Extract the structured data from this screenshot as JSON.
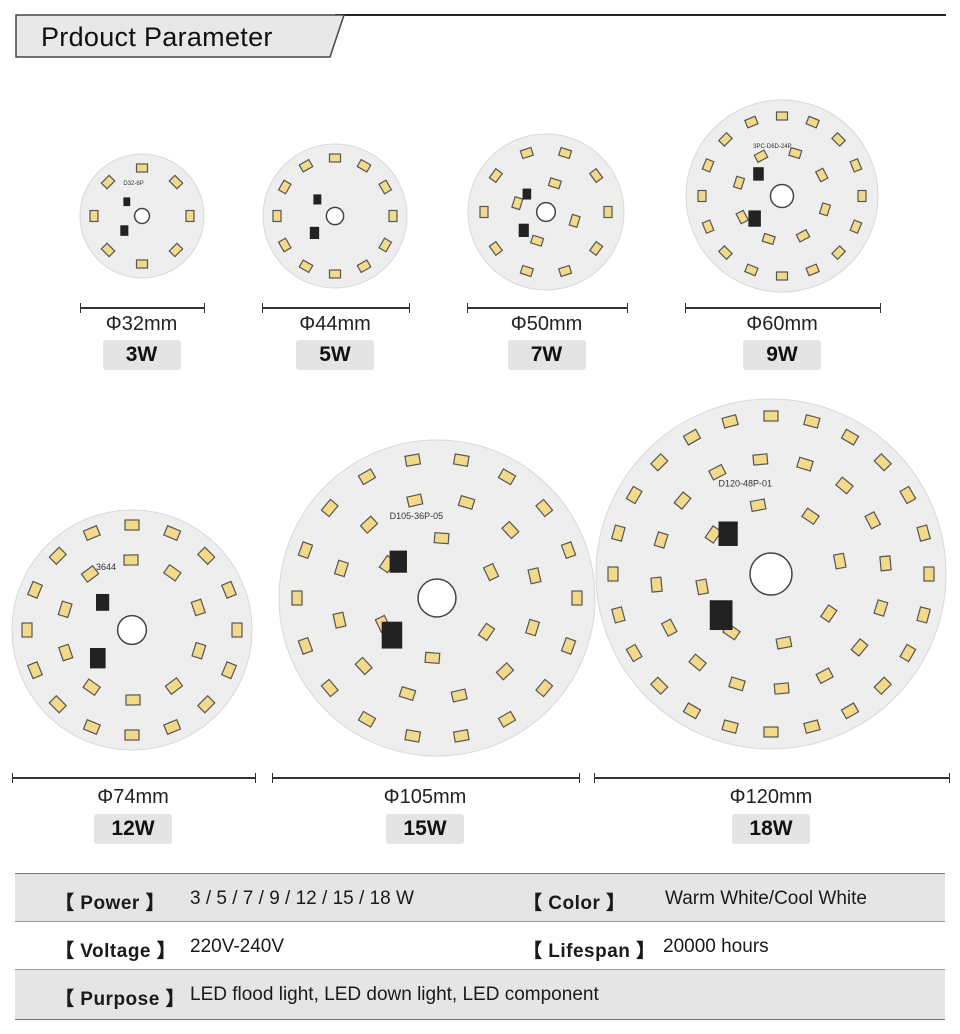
{
  "header": {
    "title": "Prdouct Parameter"
  },
  "boards": [
    {
      "diameter": "Φ32mm",
      "power": "3W",
      "silkscreen": "D32-6P"
    },
    {
      "diameter": "Φ44mm",
      "power": "5W"
    },
    {
      "diameter": "Φ50mm",
      "power": "7W"
    },
    {
      "diameter": "Φ60mm",
      "power": "9W",
      "silkscreen": "3PC-D6D-24P"
    },
    {
      "diameter": "Φ74mm",
      "power": "12W",
      "silkscreen": "3644"
    },
    {
      "diameter": "Φ105mm",
      "power": "15W",
      "silkscreen": "D105-36P-05"
    },
    {
      "diameter": "Φ120mm",
      "power": "18W",
      "silkscreen": "D120-48P-01"
    }
  ],
  "specs": {
    "power_label": "【 Power 】",
    "power_value": "3 / 5 / 7 / 9 / 12 / 15 / 18 W",
    "color_label": "【 Color 】",
    "color_value": "Warm White/Cool White",
    "voltage_label": "【 Voltage 】",
    "voltage_value": "220V-240V",
    "lifespan_label": "【 Lifespan 】",
    "lifespan_value": "20000 hours",
    "purpose_label": "【 Purpose 】",
    "purpose_value": "LED flood light, LED down light, LED component"
  },
  "colors": {
    "board": "#eeeeee",
    "led": "#f3d98a",
    "badge": "#e4e4e4"
  }
}
